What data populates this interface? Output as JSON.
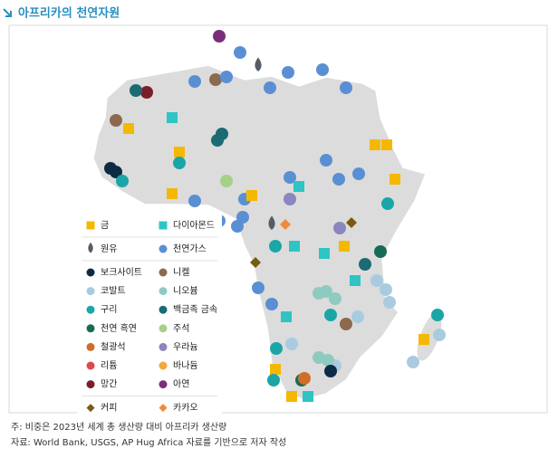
{
  "title": "아프리카의 천연자원",
  "legend": {
    "groups": [
      [
        {
          "label": "금",
          "color": "#f5b800",
          "shape": "square"
        },
        {
          "label": "다이아몬드",
          "color": "#2ec4c4",
          "shape": "square"
        }
      ],
      [
        {
          "label": "원유",
          "color": "#555c63",
          "shape": "drop"
        },
        {
          "label": "천연가스",
          "color": "#5b8fd4",
          "shape": "circle"
        }
      ],
      [
        {
          "label": "보크사이트",
          "color": "#0d2b45",
          "shape": "circle"
        },
        {
          "label": "니켈",
          "color": "#8b6a50",
          "shape": "circle"
        },
        {
          "label": "코발트",
          "color": "#a9cbe0",
          "shape": "circle"
        },
        {
          "label": "니오븀",
          "color": "#8fcac0",
          "shape": "circle"
        },
        {
          "label": "구리",
          "color": "#1aa6a6",
          "shape": "circle"
        },
        {
          "label": "백금족 금속",
          "color": "#1a6b73",
          "shape": "circle"
        },
        {
          "label": "천연 흑연",
          "color": "#176b55",
          "shape": "circle"
        },
        {
          "label": "주석",
          "color": "#a6d08a",
          "shape": "circle"
        },
        {
          "label": "철광석",
          "color": "#cf6e2a",
          "shape": "circle"
        },
        {
          "label": "우라늄",
          "color": "#8a86bf",
          "shape": "circle"
        },
        {
          "label": "리튬",
          "color": "#e04848",
          "shape": "circle"
        },
        {
          "label": "바나듐",
          "color": "#f2a93b",
          "shape": "circle"
        },
        {
          "label": "망간",
          "color": "#7a1f2a",
          "shape": "circle"
        },
        {
          "label": "아연",
          "color": "#7a2d7a",
          "shape": "circle"
        }
      ],
      [
        {
          "label": "커피",
          "color": "#7a5a12",
          "shape": "diamond"
        },
        {
          "label": "카카오",
          "color": "#f08a3c",
          "shape": "diamond"
        }
      ]
    ]
  },
  "notes": [
    "주: 비중은 2023년 세계 총 생산량 대비 아프리카 생산량",
    "자료: World Bank, USGS, AP Hug Africa 자료를 기반으로 저자 작성"
  ]
}
